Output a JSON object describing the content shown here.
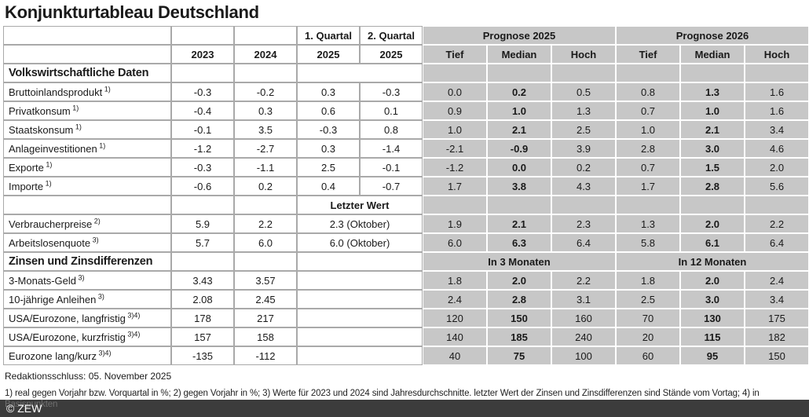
{
  "title": "Konjunkturtableau Deutschland",
  "colors": {
    "cell_gray": "#c7c7c7",
    "grid_line": "#a9a9a9",
    "footer_bar": "#3c3c3c"
  },
  "header": {
    "col_quartal_1": "1. Quartal",
    "col_quartal_2": "2. Quartal",
    "group_prognose_2025": "Prognose 2025",
    "group_prognose_2026": "Prognose 2026",
    "year_2023": "2023",
    "year_2024": "2024",
    "year_q1": "2025",
    "year_q2": "2025",
    "tief": "Tief",
    "median": "Median",
    "hoch": "Hoch"
  },
  "rows": [
    {
      "kind": "section",
      "label": "Volkswirtschaftliche Daten"
    },
    {
      "kind": "data",
      "label": "Bruttoinlandsprodukt",
      "sup": "1)",
      "cols": [
        "-0.3",
        "-0.2",
        "0.3",
        "-0.3"
      ],
      "p25": [
        "0.0",
        "0.2",
        "0.5"
      ],
      "p26": [
        "0.8",
        "1.3",
        "1.6"
      ]
    },
    {
      "kind": "data",
      "label": "Privatkonsum",
      "sup": "1)",
      "cols": [
        "-0.4",
        "0.3",
        "0.6",
        "0.1"
      ],
      "p25": [
        "0.9",
        "1.0",
        "1.3"
      ],
      "p26": [
        "0.7",
        "1.0",
        "1.6"
      ]
    },
    {
      "kind": "data",
      "label": "Staatskonsum",
      "sup": "1)",
      "cols": [
        "-0.1",
        "3.5",
        "-0.3",
        "0.8"
      ],
      "p25": [
        "1.0",
        "2.1",
        "2.5"
      ],
      "p26": [
        "1.0",
        "2.1",
        "3.4"
      ]
    },
    {
      "kind": "data",
      "label": "Anlageinvestitionen",
      "sup": "1)",
      "cols": [
        "-1.2",
        "-2.7",
        "0.3",
        "-1.4"
      ],
      "p25": [
        "-2.1",
        "-0.9",
        "3.9"
      ],
      "p26": [
        "2.8",
        "3.0",
        "4.6"
      ]
    },
    {
      "kind": "data",
      "label": "Exporte",
      "sup": "1)",
      "cols": [
        "-0.3",
        "-1.1",
        "2.5",
        "-0.1"
      ],
      "p25": [
        "-1.2",
        "0.0",
        "0.2"
      ],
      "p26": [
        "0.7",
        "1.5",
        "2.0"
      ]
    },
    {
      "kind": "data",
      "label": "Importe",
      "sup": "1)",
      "cols": [
        "-0.6",
        "0.2",
        "0.4",
        "-0.7"
      ],
      "p25": [
        "1.7",
        "3.8",
        "4.3"
      ],
      "p26": [
        "1.7",
        "2.8",
        "5.6"
      ]
    },
    {
      "kind": "note",
      "note": "Letzter Wert"
    },
    {
      "kind": "last",
      "label": "Verbraucherpreise",
      "sup": "2)",
      "cols": [
        "5.9",
        "2.2"
      ],
      "last": "2.3 (Oktober)",
      "p25": [
        "1.9",
        "2.1",
        "2.3"
      ],
      "p26": [
        "1.3",
        "2.0",
        "2.2"
      ]
    },
    {
      "kind": "last",
      "label": "Arbeitslosenquote",
      "sup": "3)",
      "cols": [
        "5.7",
        "6.0"
      ],
      "last": "6.0 (Oktober)",
      "p25": [
        "6.0",
        "6.3",
        "6.4"
      ],
      "p26": [
        "5.8",
        "6.1",
        "6.4"
      ]
    },
    {
      "kind": "section-groups",
      "label": "Zinsen und Zinsdifferenzen",
      "group1": "In 3 Monaten",
      "group2": "In 12 Monaten"
    },
    {
      "kind": "zins",
      "label": "3-Monats-Geld",
      "sup": "3)",
      "cols": [
        "3.43",
        "3.57"
      ],
      "p25": [
        "1.8",
        "2.0",
        "2.2"
      ],
      "p26": [
        "1.8",
        "2.0",
        "2.4"
      ]
    },
    {
      "kind": "zins",
      "label": "10-jährige Anleihen",
      "sup": "3)",
      "cols": [
        "2.08",
        "2.45"
      ],
      "p25": [
        "2.4",
        "2.8",
        "3.1"
      ],
      "p26": [
        "2.5",
        "3.0",
        "3.4"
      ]
    },
    {
      "kind": "zins",
      "label": "USA/Eurozone, langfristig",
      "sup": "3)4)",
      "cols": [
        "178",
        "217"
      ],
      "p25": [
        "120",
        "150",
        "160"
      ],
      "p26": [
        "70",
        "130",
        "175"
      ]
    },
    {
      "kind": "zins",
      "label": "USA/Eurozone, kurzfristig",
      "sup": "3)4)",
      "cols": [
        "157",
        "158"
      ],
      "p25": [
        "140",
        "185",
        "240"
      ],
      "p26": [
        "20",
        "115",
        "182"
      ]
    },
    {
      "kind": "zins",
      "label": "Eurozone lang/kurz",
      "sup": "3)4)",
      "cols": [
        "-135",
        "-112"
      ],
      "p25": [
        "40",
        "75",
        "100"
      ],
      "p26": [
        "60",
        "95",
        "150"
      ]
    }
  ],
  "footer": {
    "redaktionsschluss": "Redaktionsschluss: 05. November 2025",
    "footnote_line1": "1) real gegen Vorjahr bzw. Vorquartal in %; 2) gegen Vorjahr in %; 3) Werte für 2023 und 2024 sind Jahresdurchschnitte. letzter Wert der Zinsen und Zinsdifferenzen sind Stände vom Vortag; 4) in",
    "footnote_line2": "Basispunkten",
    "copyright": "© ZEW"
  }
}
